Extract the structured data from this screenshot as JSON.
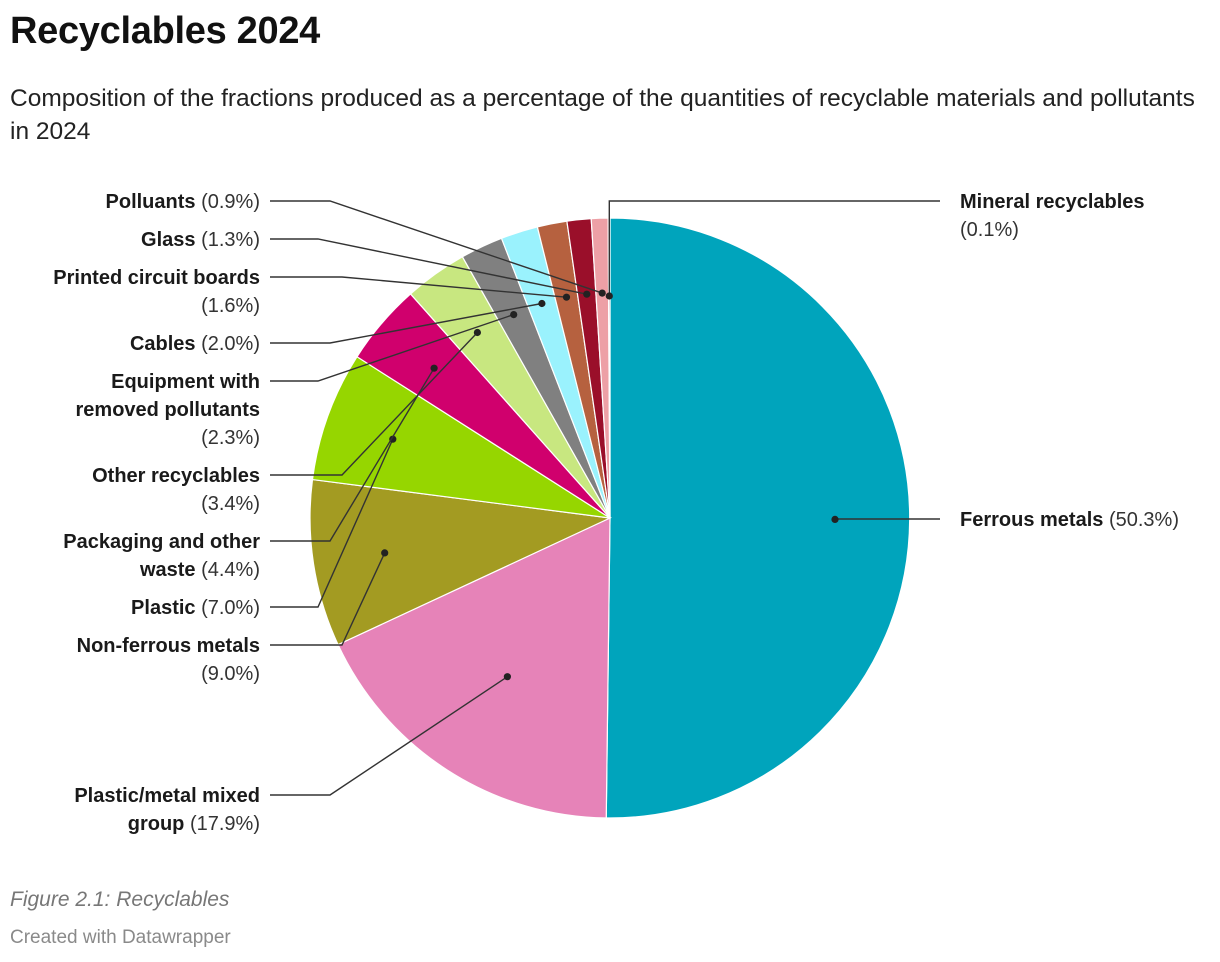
{
  "header": {
    "title": "Recyclables 2024",
    "subtitle": "Composition of the fractions produced as a percentage of the quantities of recyclable materials and pollutants in 2024"
  },
  "footer": {
    "note": "Figure 2.1: Recyclables",
    "credit": "Created with Datawrapper"
  },
  "chart_data": {
    "type": "pie",
    "title": "Recyclables 2024",
    "subtitle": "Composition of the fractions produced as a percentage of the quantities of recyclable materials and pollutants in 2024",
    "unit": "%",
    "slices": [
      {
        "name": "Ferrous metals",
        "value": 50.3,
        "label": "(50.3%)",
        "color": "#00a4bc"
      },
      {
        "name": "Plastic/metal mixed group",
        "value": 17.9,
        "label": "(17.9%)",
        "color": "#e683b8"
      },
      {
        "name": "Non-ferrous metals",
        "value": 9.0,
        "label": "(9.0%)",
        "color": "#a39b22"
      },
      {
        "name": "Plastic",
        "value": 7.0,
        "label": "(7.0%)",
        "color": "#96d600"
      },
      {
        "name": "Packaging and other waste",
        "value": 4.4,
        "label": "(4.4%)",
        "color": "#d0006d"
      },
      {
        "name": "Other recyclables",
        "value": 3.4,
        "label": "(3.4%)",
        "color": "#c8e780"
      },
      {
        "name": "Equipment with removed pollutants",
        "value": 2.3,
        "label": "(2.3%)",
        "color": "#808080"
      },
      {
        "name": "Cables",
        "value": 2.0,
        "label": "(2.0%)",
        "color": "#9af2fd"
      },
      {
        "name": "Printed circuit boards",
        "value": 1.6,
        "label": "(1.6%)",
        "color": "#b6613f"
      },
      {
        "name": "Glass",
        "value": 1.3,
        "label": "(1.3%)",
        "color": "#9a0f2a"
      },
      {
        "name": "Polluants",
        "value": 0.9,
        "label": "(0.9%)",
        "color": "#eda0a6"
      },
      {
        "name": "Mineral recyclables",
        "value": 0.1,
        "label": "(0.1%)",
        "color": "#9a0f2a"
      }
    ]
  }
}
